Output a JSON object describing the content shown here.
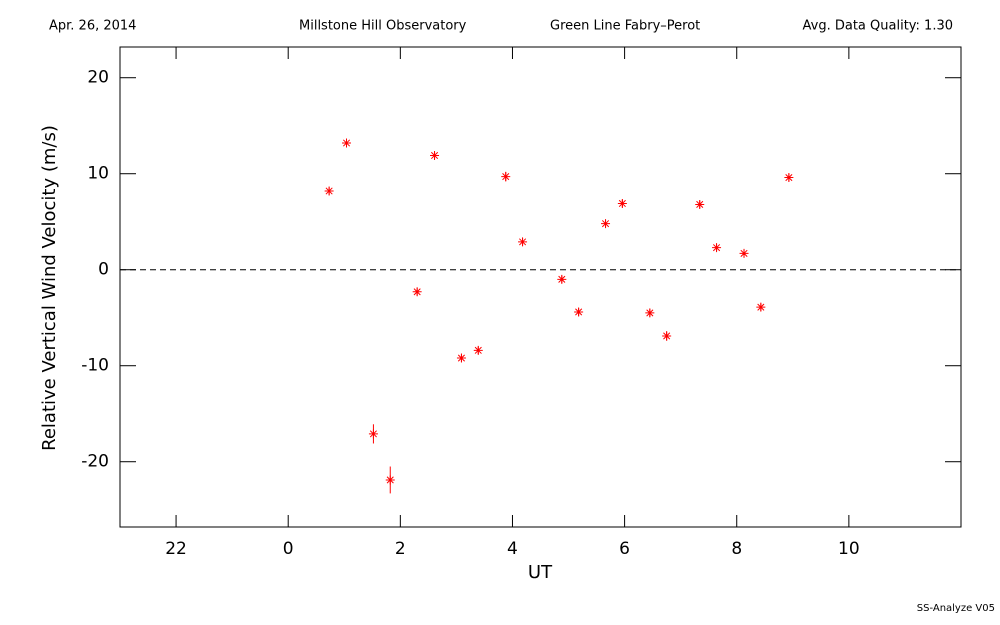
{
  "chart_data": {
    "type": "scatter",
    "header": [
      "Apr. 26, 2014",
      "Millstone Hill Observatory",
      "Green Line Fabry–Perot",
      "Avg. Data Quality: 1.30"
    ],
    "footer": "SS-Analyze V05",
    "x_label": "UT",
    "y_label": "Relative Vertical Wind Velocity (m/s)",
    "xlim": [
      -3,
      12
    ],
    "ylim": [
      -26.8,
      23.2
    ],
    "xticks": [
      {
        "value": -2,
        "label": "22"
      },
      0,
      2,
      4,
      6,
      8,
      10
    ],
    "yticks": [
      -20,
      -10,
      0,
      10,
      20
    ],
    "reference_line": 0,
    "color": "#ff0000",
    "x": [
      0.73,
      1.04,
      1.52,
      1.82,
      2.3,
      2.61,
      3.09,
      3.39,
      3.88,
      4.18,
      4.88,
      5.18,
      5.66,
      5.96,
      6.45,
      6.75,
      7.34,
      7.64,
      8.13,
      8.43,
      8.93
    ],
    "values": [
      8.2,
      13.2,
      -17.1,
      -21.9,
      -2.3,
      11.9,
      -9.2,
      -8.4,
      9.7,
      2.9,
      -1.0,
      -4.4,
      4.8,
      6.9,
      -4.5,
      -6.9,
      6.8,
      2.3,
      1.7,
      -3.9,
      9.6
    ],
    "errors": [
      0.4,
      0.4,
      1.0,
      1.4,
      0.4,
      0.4,
      0.4,
      0.4,
      0.5,
      0.4,
      0.4,
      0.4,
      0.4,
      0.4,
      0.4,
      0.5,
      0.4,
      0.4,
      0.4,
      0.4,
      0.4
    ]
  }
}
